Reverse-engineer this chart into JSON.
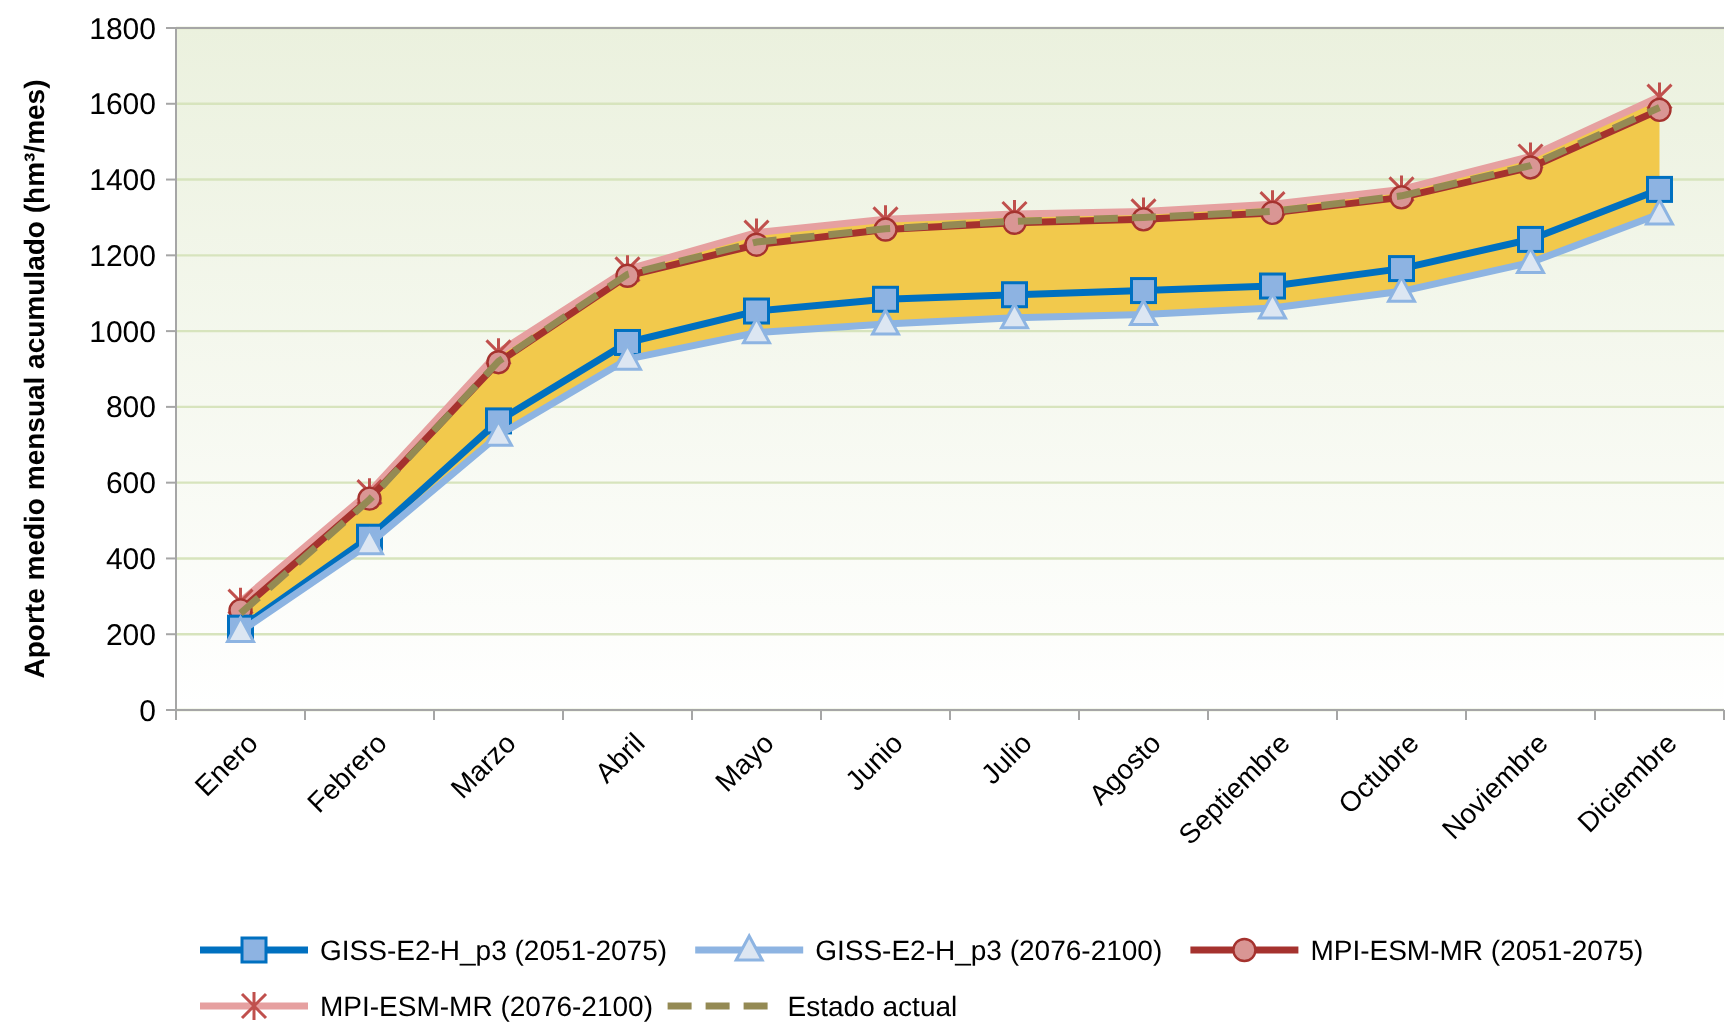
{
  "chart_data": {
    "type": "line",
    "ylabel": "Aporte medio mensual acumulado (hm³/mes)",
    "categories": [
      "Enero",
      "Febrero",
      "Marzo",
      "Abril",
      "Mayo",
      "Junio",
      "Julio",
      "Agosto",
      "Septiembre",
      "Octubre",
      "Noviembre",
      "Diciembre"
    ],
    "ylim": [
      0,
      1800
    ],
    "yticks": [
      0,
      200,
      400,
      600,
      800,
      1000,
      1200,
      1400,
      1600,
      1800
    ],
    "grid": "y",
    "legend": "bottom",
    "series": [
      {
        "name": "GISS-E2-H_p3 (2051-2075)",
        "color": "#0070c0",
        "marker": "square",
        "line_style": "solid",
        "values": [
          216,
          456,
          763,
          970,
          1053,
          1084,
          1096,
          1107,
          1119,
          1165,
          1242,
          1374
        ]
      },
      {
        "name": "GISS-E2-H_p3 (2076-2100)",
        "color": "#8db4e2",
        "marker": "triangle",
        "line_style": "solid",
        "values": [
          207,
          439,
          725,
          926,
          996,
          1019,
          1035,
          1044,
          1061,
          1105,
          1181,
          1309
        ]
      },
      {
        "name": "MPI-ESM-MR (2051-2075)",
        "color": "#a5322e",
        "marker": "circle",
        "line_style": "solid",
        "values": [
          263,
          558,
          918,
          1146,
          1228,
          1268,
          1286,
          1295,
          1312,
          1353,
          1432,
          1584
        ]
      },
      {
        "name": "MPI-ESM-MR (2076-2100)",
        "color": "#e6a0a0",
        "marker": "cross",
        "line_style": "solid",
        "values": [
          286,
          575,
          944,
          1163,
          1260,
          1295,
          1309,
          1316,
          1335,
          1374,
          1461,
          1619
        ]
      },
      {
        "name": "Estado actual",
        "color": "#948a54",
        "marker": "none",
        "line_style": "dashed",
        "values": [
          255,
          555,
          920,
          1150,
          1235,
          1270,
          1290,
          1300,
          1316,
          1357,
          1437,
          1590
        ],
        "lower": [
          207,
          439,
          725,
          926,
          996,
          1019,
          1035,
          1044,
          1061,
          1105,
          1181,
          1309
        ],
        "upper": [
          286,
          575,
          944,
          1163,
          1260,
          1295,
          1309,
          1316,
          1335,
          1374,
          1461,
          1619
        ]
      }
    ]
  }
}
